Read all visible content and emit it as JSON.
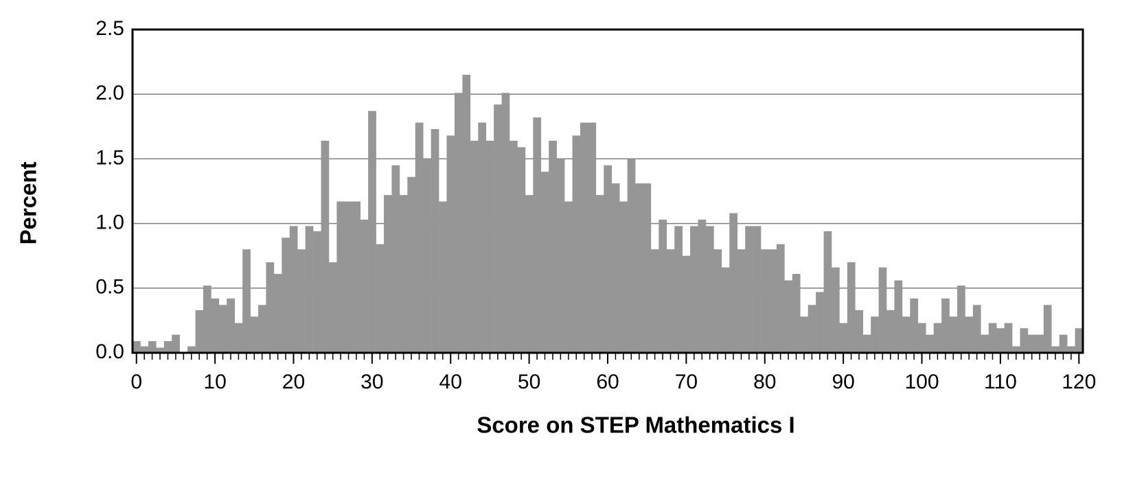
{
  "chart_data": {
    "type": "bar",
    "xlabel": "Score on STEP Mathematics I",
    "ylabel": "Percent",
    "x": [
      0,
      1,
      2,
      3,
      4,
      5,
      6,
      7,
      8,
      9,
      10,
      11,
      12,
      13,
      14,
      15,
      16,
      17,
      18,
      19,
      20,
      21,
      22,
      23,
      24,
      25,
      26,
      27,
      28,
      29,
      30,
      31,
      32,
      33,
      34,
      35,
      36,
      37,
      38,
      39,
      40,
      41,
      42,
      43,
      44,
      45,
      46,
      47,
      48,
      49,
      50,
      51,
      52,
      53,
      54,
      55,
      56,
      57,
      58,
      59,
      60,
      61,
      62,
      63,
      64,
      65,
      66,
      67,
      68,
      69,
      70,
      71,
      72,
      73,
      74,
      75,
      76,
      77,
      78,
      79,
      80,
      81,
      82,
      83,
      84,
      85,
      86,
      87,
      88,
      89,
      90,
      91,
      92,
      93,
      94,
      95,
      96,
      97,
      98,
      99,
      100,
      101,
      102,
      103,
      104,
      105,
      106,
      107,
      108,
      109,
      110,
      111,
      112,
      113,
      114,
      115,
      116,
      117,
      118,
      119,
      120
    ],
    "values": [
      0.09,
      0.05,
      0.09,
      0.04,
      0.09,
      0.14,
      0,
      0.05,
      0.33,
      0.52,
      0.42,
      0.37,
      0.42,
      0.23,
      0.8,
      0.28,
      0.37,
      0.7,
      0.61,
      0.89,
      0.98,
      0.8,
      0.98,
      0.94,
      1.64,
      0.7,
      1.17,
      1.17,
      1.17,
      1.03,
      1.87,
      0.84,
      1.22,
      1.45,
      1.22,
      1.36,
      1.78,
      1.5,
      1.73,
      1.17,
      1.68,
      2.01,
      2.15,
      1.64,
      1.78,
      1.64,
      1.92,
      2.01,
      1.64,
      1.59,
      1.22,
      1.82,
      1.4,
      1.64,
      1.5,
      1.17,
      1.68,
      1.78,
      1.78,
      1.22,
      1.45,
      1.31,
      1.17,
      1.5,
      1.31,
      1.31,
      0.8,
      1.03,
      0.8,
      0.98,
      0.75,
      0.98,
      1.03,
      0.98,
      0.8,
      0.66,
      1.08,
      0.8,
      0.98,
      0.98,
      0.8,
      0.8,
      0.84,
      0.56,
      0.61,
      0.28,
      0.37,
      0.47,
      0.94,
      0.66,
      0.23,
      0.7,
      0.33,
      0.14,
      0.28,
      0.66,
      0.33,
      0.56,
      0.28,
      0.42,
      0.23,
      0.14,
      0.23,
      0.42,
      0.28,
      0.52,
      0.28,
      0.37,
      0.14,
      0.23,
      0.19,
      0.23,
      0.05,
      0.19,
      0.14,
      0.14,
      0.37,
      0.05,
      0.14,
      0.05,
      0.19
    ],
    "color": "#969696",
    "xlim": [
      -0.5,
      120.5
    ],
    "xticks": [
      0,
      10,
      20,
      30,
      40,
      50,
      60,
      70,
      80,
      90,
      100,
      110,
      120
    ],
    "ylim": [
      0,
      2.5
    ],
    "yticks": [
      {
        "value": 0,
        "label": "0.0"
      },
      0.5,
      {
        "value": 1,
        "label": "1.0"
      },
      1.5,
      {
        "value": 2,
        "label": "2.0"
      },
      2.5
    ],
    "grid": true
  }
}
